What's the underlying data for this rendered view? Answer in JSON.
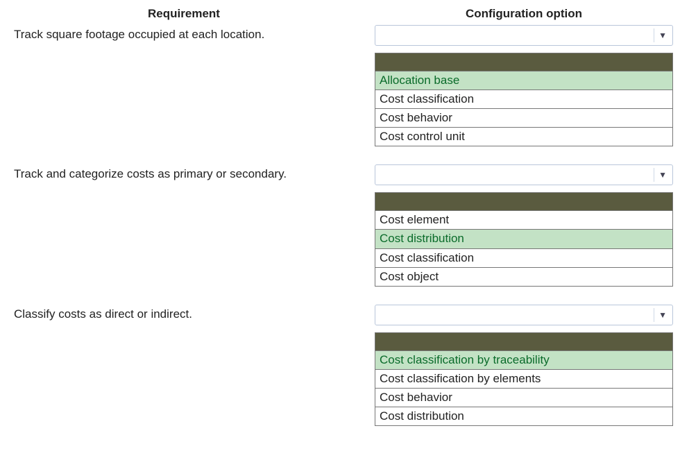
{
  "colors": {
    "list_header_bg": "#5a5b3f",
    "selected_bg": "#c3e2c5",
    "selected_text": "#0a6b2a",
    "border": "#777777",
    "combo_border": "#b9c6da"
  },
  "headers": {
    "requirement": "Requirement",
    "config": "Configuration option"
  },
  "rows": [
    {
      "requirement": "Track square footage occupied at each location.",
      "options": [
        {
          "label": "Allocation base",
          "selected": true
        },
        {
          "label": "Cost classification",
          "selected": false
        },
        {
          "label": "Cost behavior",
          "selected": false
        },
        {
          "label": "Cost control unit",
          "selected": false
        }
      ]
    },
    {
      "requirement": "Track and categorize costs as primary or secondary.",
      "options": [
        {
          "label": "Cost element",
          "selected": false
        },
        {
          "label": "Cost distribution",
          "selected": true
        },
        {
          "label": "Cost classification",
          "selected": false
        },
        {
          "label": "Cost object",
          "selected": false
        }
      ]
    },
    {
      "requirement": "Classify costs as direct or indirect.",
      "options": [
        {
          "label": "Cost classification by traceability",
          "selected": true
        },
        {
          "label": "Cost classification by elements",
          "selected": false
        },
        {
          "label": "Cost behavior",
          "selected": false
        },
        {
          "label": "Cost distribution",
          "selected": false
        }
      ]
    }
  ]
}
